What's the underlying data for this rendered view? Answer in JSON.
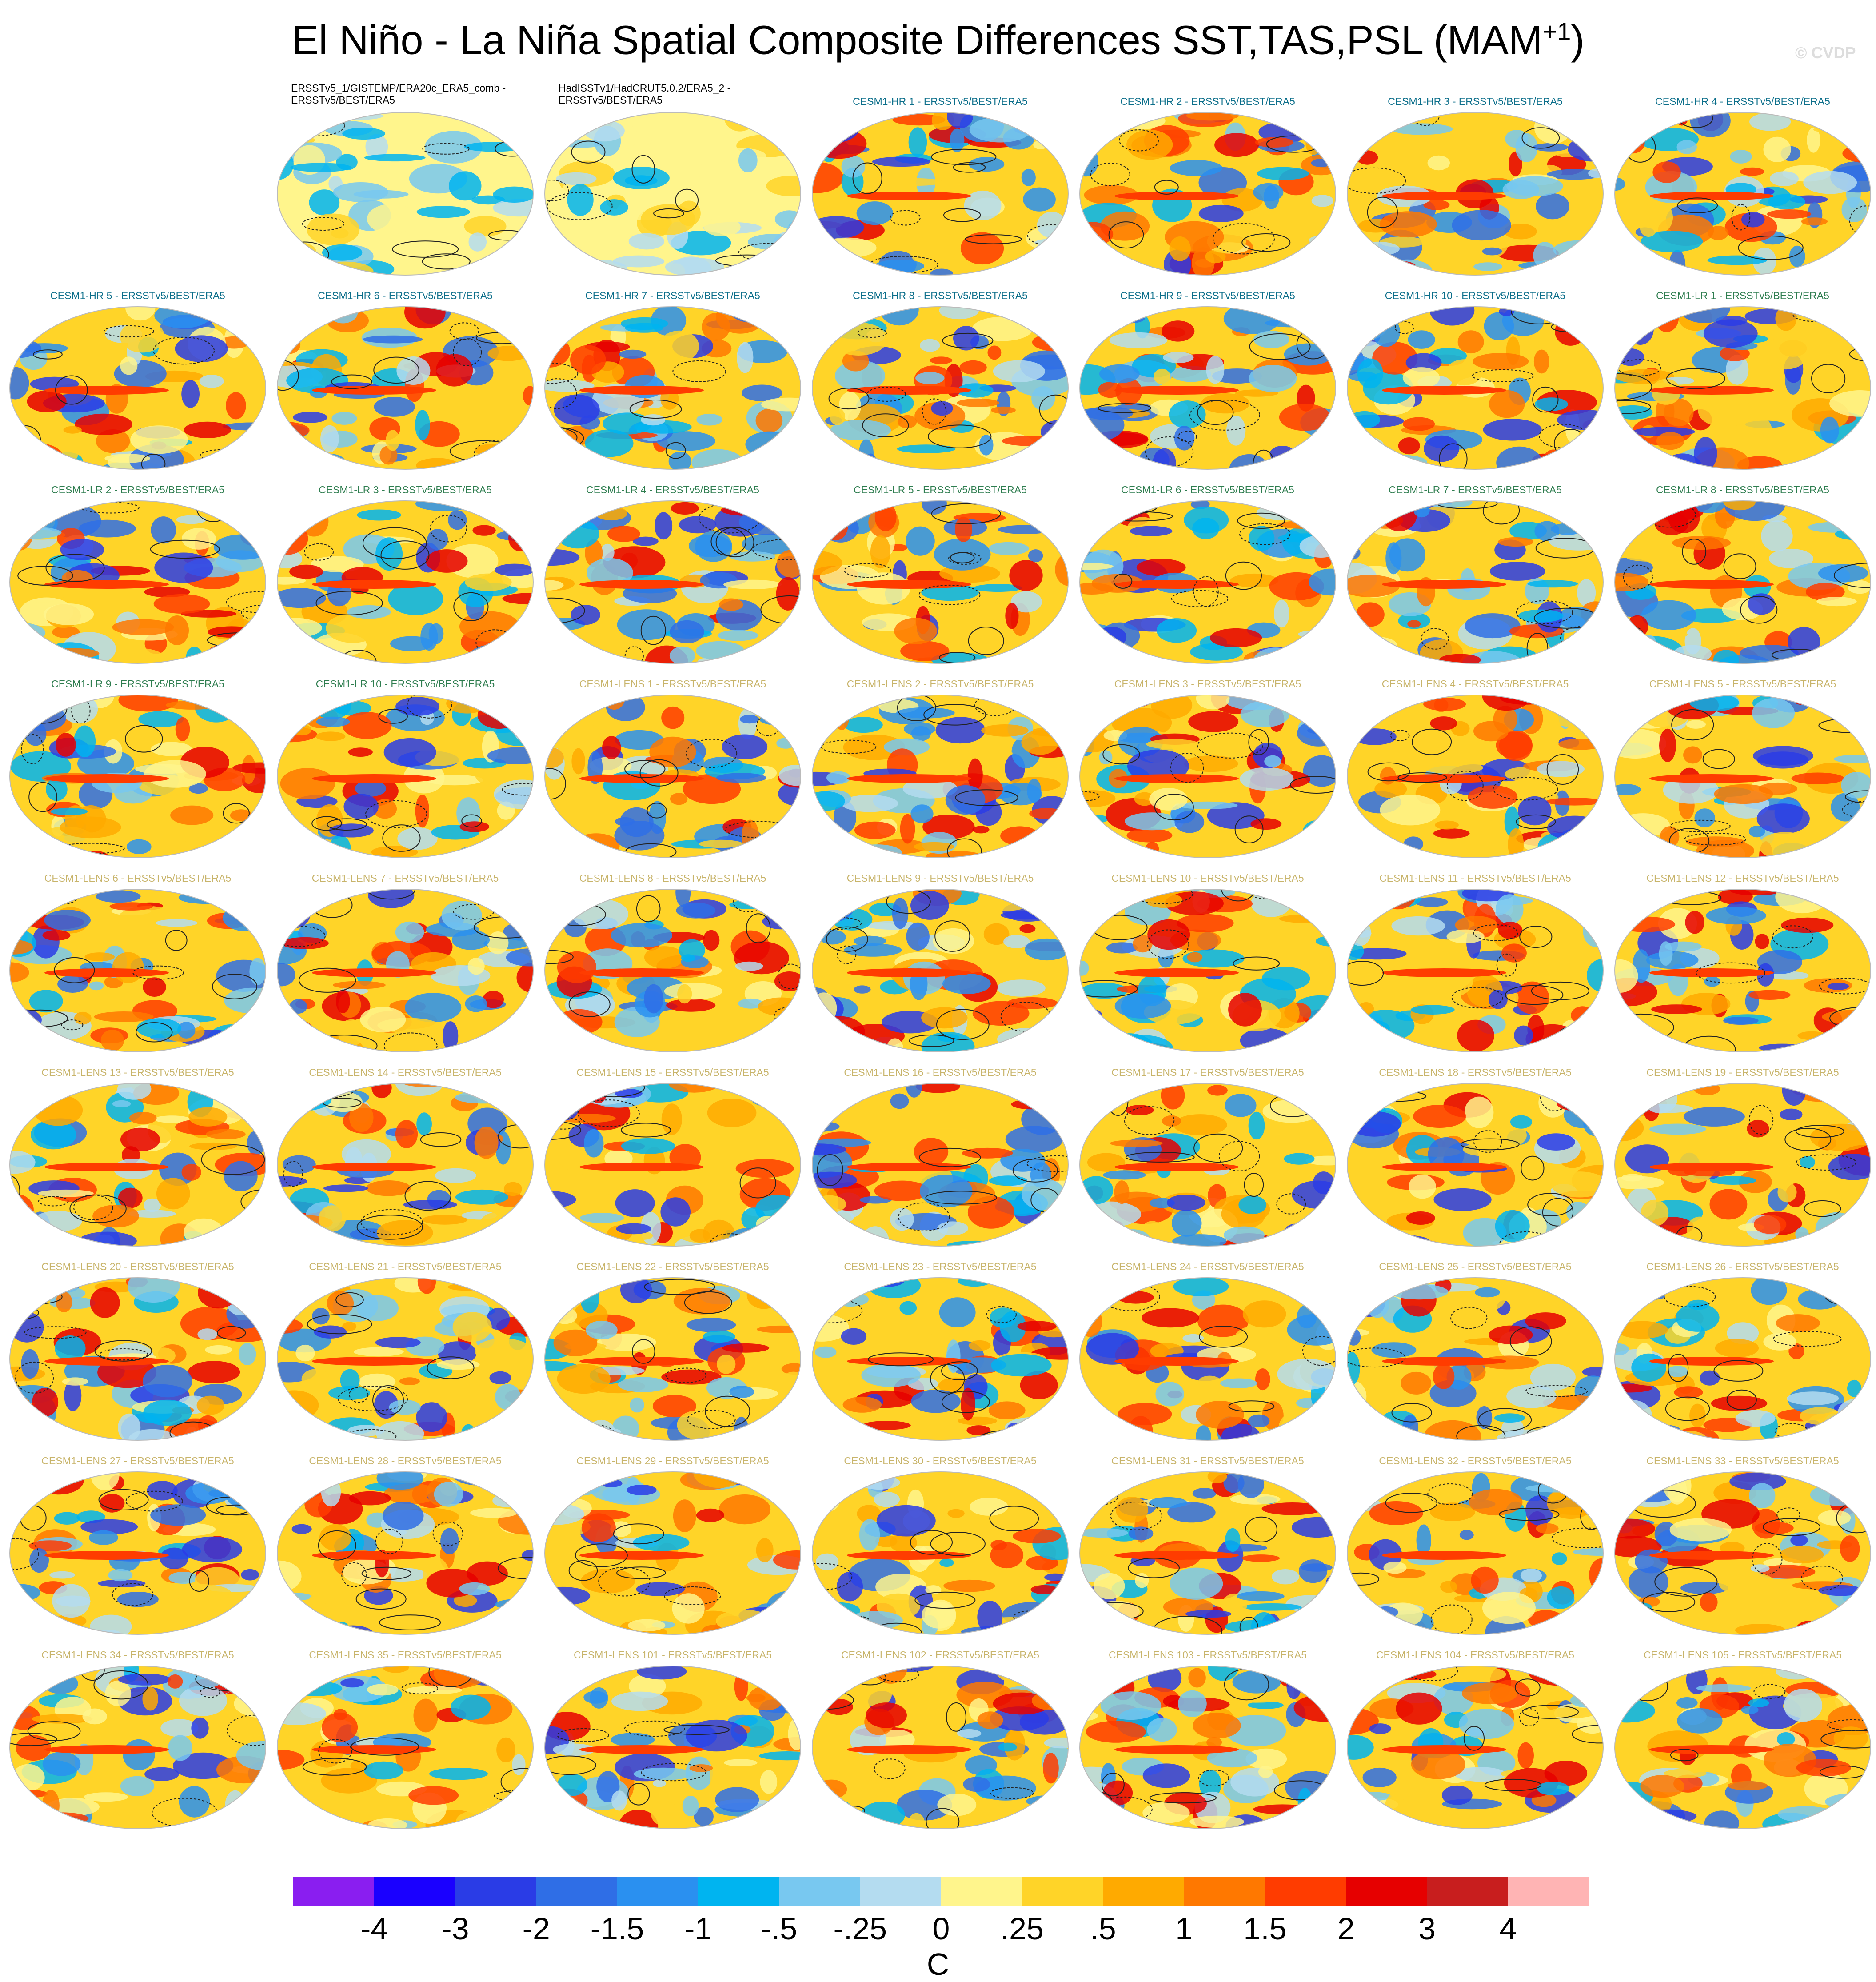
{
  "title": "El Niño - La Niña Spatial Composite Differences SST,TAS,PSL (MAM",
  "title_sup": "+1",
  "title_end": ")",
  "credit": "© CVDP",
  "panels": [
    {
      "label": "ERSSTv5_1/GISTEMP/ERA20c_ERA5_comb - ERSSTv5/BEST/ERA5",
      "group": "obs"
    },
    {
      "label": "HadISSTv1/HadCRUT5.0.2/ERA5_2 - ERSSTv5/BEST/ERA5",
      "group": "obs"
    },
    {
      "label": "CESM1-HR 1 - ERSSTv5/BEST/ERA5",
      "group": "hr"
    },
    {
      "label": "CESM1-HR 2 - ERSSTv5/BEST/ERA5",
      "group": "hr"
    },
    {
      "label": "CESM1-HR 3 - ERSSTv5/BEST/ERA5",
      "group": "hr"
    },
    {
      "label": "CESM1-HR 4 - ERSSTv5/BEST/ERA5",
      "group": "hr"
    },
    {
      "label": "CESM1-HR 5 - ERSSTv5/BEST/ERA5",
      "group": "hr"
    },
    {
      "label": "CESM1-HR 6 - ERSSTv5/BEST/ERA5",
      "group": "hr"
    },
    {
      "label": "CESM1-HR 7 - ERSSTv5/BEST/ERA5",
      "group": "hr"
    },
    {
      "label": "CESM1-HR 8 - ERSSTv5/BEST/ERA5",
      "group": "hr"
    },
    {
      "label": "CESM1-HR 9 - ERSSTv5/BEST/ERA5",
      "group": "hr"
    },
    {
      "label": "CESM1-HR 10 - ERSSTv5/BEST/ERA5",
      "group": "hr"
    },
    {
      "label": "CESM1-LR 1 - ERSSTv5/BEST/ERA5",
      "group": "lr"
    },
    {
      "label": "CESM1-LR 2 - ERSSTv5/BEST/ERA5",
      "group": "lr"
    },
    {
      "label": "CESM1-LR 3 - ERSSTv5/BEST/ERA5",
      "group": "lr"
    },
    {
      "label": "CESM1-LR 4 - ERSSTv5/BEST/ERA5",
      "group": "lr"
    },
    {
      "label": "CESM1-LR 5 - ERSSTv5/BEST/ERA5",
      "group": "lr"
    },
    {
      "label": "CESM1-LR 6 - ERSSTv5/BEST/ERA5",
      "group": "lr"
    },
    {
      "label": "CESM1-LR 7 - ERSSTv5/BEST/ERA5",
      "group": "lr"
    },
    {
      "label": "CESM1-LR 8 - ERSSTv5/BEST/ERA5",
      "group": "lr"
    },
    {
      "label": "CESM1-LR 9 - ERSSTv5/BEST/ERA5",
      "group": "lr"
    },
    {
      "label": "CESM1-LR 10 - ERSSTv5/BEST/ERA5",
      "group": "lr"
    },
    {
      "label": "CESM1-LENS 1 - ERSSTv5/BEST/ERA5",
      "group": "lens"
    },
    {
      "label": "CESM1-LENS 2 - ERSSTv5/BEST/ERA5",
      "group": "lens"
    },
    {
      "label": "CESM1-LENS 3 - ERSSTv5/BEST/ERA5",
      "group": "lens"
    },
    {
      "label": "CESM1-LENS 4 - ERSSTv5/BEST/ERA5",
      "group": "lens"
    },
    {
      "label": "CESM1-LENS 5 - ERSSTv5/BEST/ERA5",
      "group": "lens"
    },
    {
      "label": "CESM1-LENS 6 - ERSSTv5/BEST/ERA5",
      "group": "lens"
    },
    {
      "label": "CESM1-LENS 7 - ERSSTv5/BEST/ERA5",
      "group": "lens"
    },
    {
      "label": "CESM1-LENS 8 - ERSSTv5/BEST/ERA5",
      "group": "lens"
    },
    {
      "label": "CESM1-LENS 9 - ERSSTv5/BEST/ERA5",
      "group": "lens"
    },
    {
      "label": "CESM1-LENS 10 - ERSSTv5/BEST/ERA5",
      "group": "lens"
    },
    {
      "label": "CESM1-LENS 11 - ERSSTv5/BEST/ERA5",
      "group": "lens"
    },
    {
      "label": "CESM1-LENS 12 - ERSSTv5/BEST/ERA5",
      "group": "lens"
    },
    {
      "label": "CESM1-LENS 13 - ERSSTv5/BEST/ERA5",
      "group": "lens"
    },
    {
      "label": "CESM1-LENS 14 - ERSSTv5/BEST/ERA5",
      "group": "lens"
    },
    {
      "label": "CESM1-LENS 15 - ERSSTv5/BEST/ERA5",
      "group": "lens"
    },
    {
      "label": "CESM1-LENS 16 - ERSSTv5/BEST/ERA5",
      "group": "lens"
    },
    {
      "label": "CESM1-LENS 17 - ERSSTv5/BEST/ERA5",
      "group": "lens"
    },
    {
      "label": "CESM1-LENS 18 - ERSSTv5/BEST/ERA5",
      "group": "lens"
    },
    {
      "label": "CESM1-LENS 19 - ERSSTv5/BEST/ERA5",
      "group": "lens"
    },
    {
      "label": "CESM1-LENS 20 - ERSSTv5/BEST/ERA5",
      "group": "lens"
    },
    {
      "label": "CESM1-LENS 21 - ERSSTv5/BEST/ERA5",
      "group": "lens"
    },
    {
      "label": "CESM1-LENS 22 - ERSSTv5/BEST/ERA5",
      "group": "lens"
    },
    {
      "label": "CESM1-LENS 23 - ERSSTv5/BEST/ERA5",
      "group": "lens"
    },
    {
      "label": "CESM1-LENS 24 - ERSSTv5/BEST/ERA5",
      "group": "lens"
    },
    {
      "label": "CESM1-LENS 25 - ERSSTv5/BEST/ERA5",
      "group": "lens"
    },
    {
      "label": "CESM1-LENS 26 - ERSSTv5/BEST/ERA5",
      "group": "lens"
    },
    {
      "label": "CESM1-LENS 27 - ERSSTv5/BEST/ERA5",
      "group": "lens"
    },
    {
      "label": "CESM1-LENS 28 - ERSSTv5/BEST/ERA5",
      "group": "lens"
    },
    {
      "label": "CESM1-LENS 29 - ERSSTv5/BEST/ERA5",
      "group": "lens"
    },
    {
      "label": "CESM1-LENS 30 - ERSSTv5/BEST/ERA5",
      "group": "lens"
    },
    {
      "label": "CESM1-LENS 31 - ERSSTv5/BEST/ERA5",
      "group": "lens"
    },
    {
      "label": "CESM1-LENS 32 - ERSSTv5/BEST/ERA5",
      "group": "lens"
    },
    {
      "label": "CESM1-LENS 33 - ERSSTv5/BEST/ERA5",
      "group": "lens"
    },
    {
      "label": "CESM1-LENS 34 - ERSSTv5/BEST/ERA5",
      "group": "lens"
    },
    {
      "label": "CESM1-LENS 35 - ERSSTv5/BEST/ERA5",
      "group": "lens"
    },
    {
      "label": "CESM1-LENS 101 - ERSSTv5/BEST/ERA5",
      "group": "lens"
    },
    {
      "label": "CESM1-LENS 102 - ERSSTv5/BEST/ERA5",
      "group": "lens"
    },
    {
      "label": "CESM1-LENS 103 - ERSSTv5/BEST/ERA5",
      "group": "lens"
    },
    {
      "label": "CESM1-LENS 104 - ERSSTv5/BEST/ERA5",
      "group": "lens"
    },
    {
      "label": "CESM1-LENS 105 - ERSSTv5/BEST/ERA5",
      "group": "lens"
    }
  ],
  "group_colors": {
    "obs": "#000000",
    "hr": "#0b6e8a",
    "lr": "#2e7d4f",
    "lens": "#c8b46a"
  },
  "colorbar": {
    "colors": [
      "#8a1ef0",
      "#1a00ff",
      "#2a3ce6",
      "#2f6ee6",
      "#2a90f0",
      "#00b4f0",
      "#78c8f0",
      "#b4dcf0",
      "#fff58c",
      "#ffd428",
      "#ffaa00",
      "#ff7800",
      "#ff3c00",
      "#e60000",
      "#c81e1e",
      "#ffb4b4"
    ],
    "ticks": [
      "-4",
      "-3",
      "-2",
      "-1.5",
      "-1",
      "-.5",
      "-.25",
      "0",
      ".25",
      ".5",
      "1",
      "1.5",
      "2",
      "3",
      "4"
    ],
    "units": "C"
  }
}
